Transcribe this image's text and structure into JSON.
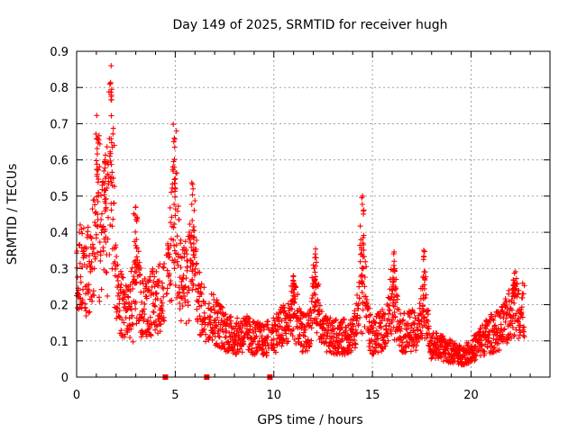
{
  "chart_data": {
    "type": "scatter",
    "title": "Day 149 of 2025, SRMTID for receiver hugh",
    "xlabel": "GPS time / hours",
    "ylabel": "SRMTID / TECUs",
    "xlim": [
      0,
      24
    ],
    "ylim": [
      0,
      0.9
    ],
    "x_ticks": [
      0,
      5,
      10,
      15,
      20
    ],
    "y_ticks": [
      0,
      0.1,
      0.2,
      0.3,
      0.4,
      0.5,
      0.6,
      0.7,
      0.8,
      0.9
    ],
    "x_tick_labels": [
      "0",
      "5",
      "10",
      "15",
      "20"
    ],
    "y_tick_labels": [
      "0",
      "0.1",
      "0.2",
      "0.3",
      "0.4",
      "0.5",
      "0.6",
      "0.7",
      "0.8",
      "0.9"
    ],
    "grid": true,
    "marker": "+",
    "color": "#ff0000",
    "gap_markers_x": [
      4.5,
      6.6,
      9.8
    ],
    "x_end": 22.7,
    "baseline_profile": {
      "x": [
        0,
        0.5,
        1.0,
        1.5,
        2.0,
        2.5,
        3.0,
        3.5,
        4.0,
        4.5,
        5.0,
        5.5,
        6.0,
        6.5,
        7.0,
        7.5,
        8.0,
        8.5,
        9.0,
        9.5,
        10.0,
        10.5,
        11.0,
        11.5,
        12.0,
        12.5,
        13.0,
        13.5,
        14.0,
        14.5,
        15.0,
        15.5,
        16.0,
        16.5,
        17.0,
        17.5,
        18.0,
        18.5,
        19.0,
        19.5,
        20.0,
        20.5,
        21.0,
        21.5,
        22.0,
        22.7
      ],
      "y": [
        0.3,
        0.28,
        0.32,
        0.38,
        0.22,
        0.18,
        0.14,
        0.2,
        0.21,
        0.24,
        0.3,
        0.26,
        0.2,
        0.18,
        0.16,
        0.13,
        0.11,
        0.12,
        0.11,
        0.1,
        0.12,
        0.14,
        0.13,
        0.12,
        0.13,
        0.12,
        0.11,
        0.11,
        0.12,
        0.15,
        0.11,
        0.13,
        0.16,
        0.12,
        0.13,
        0.1,
        0.09,
        0.08,
        0.07,
        0.06,
        0.07,
        0.1,
        0.12,
        0.13,
        0.17,
        0.18
      ]
    },
    "peaks": [
      {
        "x": 1.05,
        "y": 0.66
      },
      {
        "x": 1.45,
        "y": 0.6
      },
      {
        "x": 1.75,
        "y": 0.86
      },
      {
        "x": 3.0,
        "y": 0.47
      },
      {
        "x": 4.95,
        "y": 0.66
      },
      {
        "x": 5.9,
        "y": 0.52
      },
      {
        "x": 11.0,
        "y": 0.28
      },
      {
        "x": 12.1,
        "y": 0.34
      },
      {
        "x": 14.5,
        "y": 0.5
      },
      {
        "x": 16.1,
        "y": 0.32
      },
      {
        "x": 17.6,
        "y": 0.35
      },
      {
        "x": 22.2,
        "y": 0.26
      }
    ]
  }
}
